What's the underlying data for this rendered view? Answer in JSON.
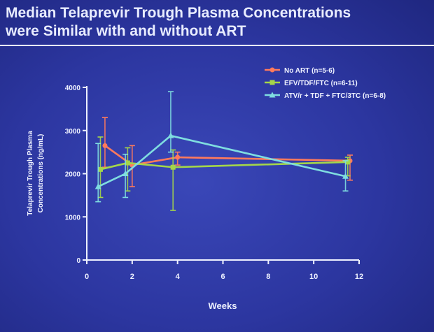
{
  "slide": {
    "title_line1": "Median Telaprevir Trough Plasma Concentrations",
    "title_line2": "were Similar with and without ART"
  },
  "chart_data": {
    "type": "line",
    "xlabel": "Weeks",
    "ylabel_line1": "Telaprevir Trough Plasma",
    "ylabel_line2": "Concentrations (ng/mL)",
    "xlim": [
      0,
      12
    ],
    "ylim": [
      0,
      4000
    ],
    "xticks": [
      0,
      2,
      4,
      6,
      8,
      10,
      12
    ],
    "yticks": [
      0,
      1000,
      2000,
      3000,
      4000
    ],
    "grid": false,
    "legend_position": "top-right",
    "series": [
      {
        "name": "No ART (n=5-6)",
        "color": "#ff7a5c",
        "marker": "circle",
        "x": [
          0.8,
          2,
          4,
          11.6
        ],
        "y": [
          2650,
          2200,
          2380,
          2300
        ],
        "err_low": [
          2150,
          1700,
          2200,
          1850
        ],
        "err_high": [
          3300,
          2650,
          2500,
          2430
        ]
      },
      {
        "name": "EFV/TDF/FTC (n=6-11)",
        "color": "#a4d64a",
        "marker": "square",
        "x": [
          0.6,
          1.8,
          3.8,
          11.5
        ],
        "y": [
          2100,
          2250,
          2150,
          2270
        ],
        "err_low": [
          1450,
          1600,
          1150,
          1950
        ],
        "err_high": [
          2850,
          2600,
          2550,
          2380
        ]
      },
      {
        "name": "ATV/r + TDF + FTC/3TC (n=6-8)",
        "color": "#7fdde0",
        "marker": "triangle",
        "x": [
          0.5,
          1.7,
          3.7,
          11.4
        ],
        "y": [
          1700,
          2000,
          2880,
          1940
        ],
        "err_low": [
          1350,
          1450,
          2500,
          1600
        ],
        "err_high": [
          2700,
          2450,
          3900,
          2300
        ]
      }
    ]
  }
}
